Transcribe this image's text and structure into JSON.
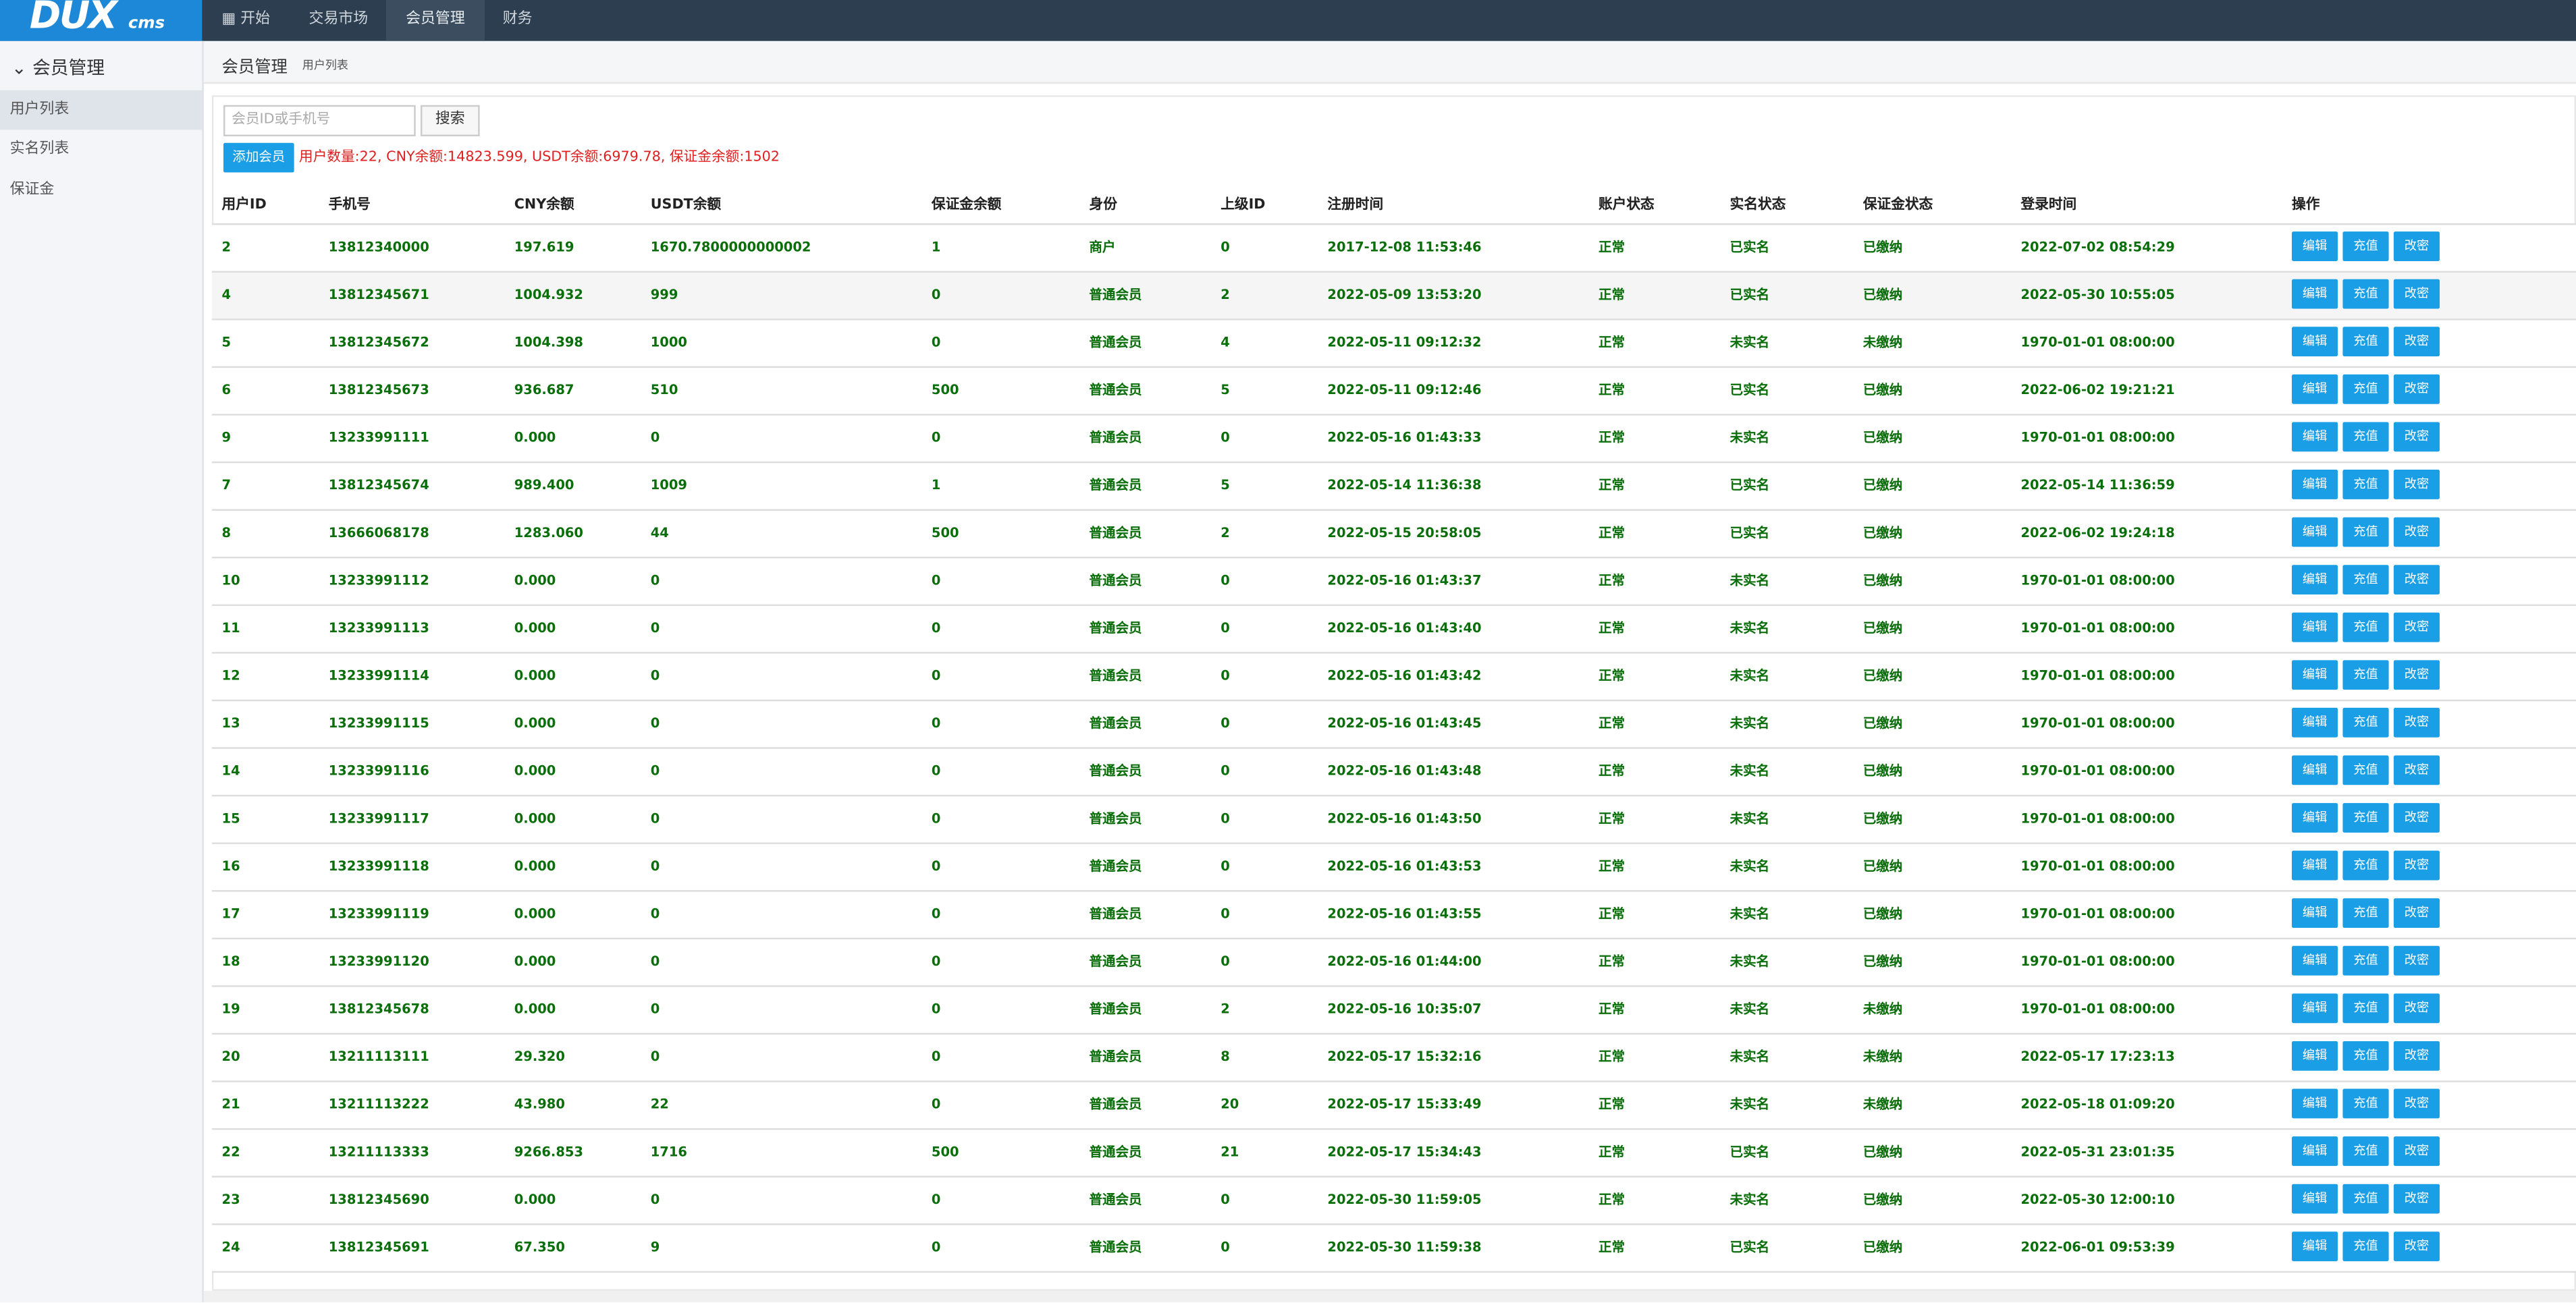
{
  "logo": {
    "main": "DUX",
    "sub": "cms"
  },
  "nav": [
    "开始",
    "交易市场",
    "会员管理",
    "财务"
  ],
  "sidebar": {
    "title": "会员管理",
    "items": [
      "用户列表",
      "实名列表",
      "保证金"
    ]
  },
  "breadcrumb": {
    "title": "会员管理",
    "sub": "用户列表"
  },
  "search": {
    "placeholder": "会员ID或手机号",
    "button": "搜索"
  },
  "add_button": "添加会员",
  "summary": "用户数量:22, CNY余额:14823.599, USDT余额:6979.78, 保证金余额:1502",
  "table": {
    "columns": [
      "用户ID",
      "手机号",
      "CNY余额",
      "USDT余额",
      "保证金余额",
      "身份",
      "上级ID",
      "注册时间",
      "账户状态",
      "实名状态",
      "保证金状态",
      "登录时间",
      "操作"
    ],
    "actions": [
      "编辑",
      "充值",
      "改密"
    ],
    "rows": [
      [
        "2",
        "13812340000",
        "197.619",
        "1670.7800000000002",
        "1",
        "商户",
        "0",
        "2017-12-08 11:53:46",
        "正常",
        "已实名",
        "已缴纳",
        "2022-07-02 08:54:29"
      ],
      [
        "4",
        "13812345671",
        "1004.932",
        "999",
        "0",
        "普通会员",
        "2",
        "2022-05-09 13:53:20",
        "正常",
        "已实名",
        "已缴纳",
        "2022-05-30 10:55:05"
      ],
      [
        "5",
        "13812345672",
        "1004.398",
        "1000",
        "0",
        "普通会员",
        "4",
        "2022-05-11 09:12:32",
        "正常",
        "未实名",
        "未缴纳",
        "1970-01-01 08:00:00"
      ],
      [
        "6",
        "13812345673",
        "936.687",
        "510",
        "500",
        "普通会员",
        "5",
        "2022-05-11 09:12:46",
        "正常",
        "已实名",
        "已缴纳",
        "2022-06-02 19:21:21"
      ],
      [
        "9",
        "13233991111",
        "0.000",
        "0",
        "0",
        "普通会员",
        "0",
        "2022-05-16 01:43:33",
        "正常",
        "未实名",
        "已缴纳",
        "1970-01-01 08:00:00"
      ],
      [
        "7",
        "13812345674",
        "989.400",
        "1009",
        "1",
        "普通会员",
        "5",
        "2022-05-14 11:36:38",
        "正常",
        "已实名",
        "已缴纳",
        "2022-05-14 11:36:59"
      ],
      [
        "8",
        "13666068178",
        "1283.060",
        "44",
        "500",
        "普通会员",
        "2",
        "2022-05-15 20:58:05",
        "正常",
        "已实名",
        "已缴纳",
        "2022-06-02 19:24:18"
      ],
      [
        "10",
        "13233991112",
        "0.000",
        "0",
        "0",
        "普通会员",
        "0",
        "2022-05-16 01:43:37",
        "正常",
        "未实名",
        "已缴纳",
        "1970-01-01 08:00:00"
      ],
      [
        "11",
        "13233991113",
        "0.000",
        "0",
        "0",
        "普通会员",
        "0",
        "2022-05-16 01:43:40",
        "正常",
        "未实名",
        "已缴纳",
        "1970-01-01 08:00:00"
      ],
      [
        "12",
        "13233991114",
        "0.000",
        "0",
        "0",
        "普通会员",
        "0",
        "2022-05-16 01:43:42",
        "正常",
        "未实名",
        "已缴纳",
        "1970-01-01 08:00:00"
      ],
      [
        "13",
        "13233991115",
        "0.000",
        "0",
        "0",
        "普通会员",
        "0",
        "2022-05-16 01:43:45",
        "正常",
        "未实名",
        "已缴纳",
        "1970-01-01 08:00:00"
      ],
      [
        "14",
        "13233991116",
        "0.000",
        "0",
        "0",
        "普通会员",
        "0",
        "2022-05-16 01:43:48",
        "正常",
        "未实名",
        "已缴纳",
        "1970-01-01 08:00:00"
      ],
      [
        "15",
        "13233991117",
        "0.000",
        "0",
        "0",
        "普通会员",
        "0",
        "2022-05-16 01:43:50",
        "正常",
        "未实名",
        "已缴纳",
        "1970-01-01 08:00:00"
      ],
      [
        "16",
        "13233991118",
        "0.000",
        "0",
        "0",
        "普通会员",
        "0",
        "2022-05-16 01:43:53",
        "正常",
        "未实名",
        "已缴纳",
        "1970-01-01 08:00:00"
      ],
      [
        "17",
        "13233991119",
        "0.000",
        "0",
        "0",
        "普通会员",
        "0",
        "2022-05-16 01:43:55",
        "正常",
        "未实名",
        "已缴纳",
        "1970-01-01 08:00:00"
      ],
      [
        "18",
        "13233991120",
        "0.000",
        "0",
        "0",
        "普通会员",
        "0",
        "2022-05-16 01:44:00",
        "正常",
        "未实名",
        "已缴纳",
        "1970-01-01 08:00:00"
      ],
      [
        "19",
        "13812345678",
        "0.000",
        "0",
        "0",
        "普通会员",
        "2",
        "2022-05-16 10:35:07",
        "正常",
        "未实名",
        "未缴纳",
        "1970-01-01 08:00:00"
      ],
      [
        "20",
        "13211113111",
        "29.320",
        "0",
        "0",
        "普通会员",
        "8",
        "2022-05-17 15:32:16",
        "正常",
        "未实名",
        "未缴纳",
        "2022-05-17 17:23:13"
      ],
      [
        "21",
        "13211113222",
        "43.980",
        "22",
        "0",
        "普通会员",
        "20",
        "2022-05-17 15:33:49",
        "正常",
        "未实名",
        "未缴纳",
        "2022-05-18 01:09:20"
      ],
      [
        "22",
        "13211113333",
        "9266.853",
        "1716",
        "500",
        "普通会员",
        "21",
        "2022-05-17 15:34:43",
        "正常",
        "已实名",
        "已缴纳",
        "2022-05-31 23:01:35"
      ],
      [
        "23",
        "13812345690",
        "0.000",
        "0",
        "0",
        "普通会员",
        "0",
        "2022-05-30 11:59:05",
        "正常",
        "未实名",
        "已缴纳",
        "2022-05-30 12:00:10"
      ],
      [
        "24",
        "13812345691",
        "67.350",
        "9",
        "0",
        "普通会员",
        "0",
        "2022-05-30 11:59:38",
        "正常",
        "已实名",
        "已缴纳",
        "2022-06-01 09:53:39"
      ]
    ]
  }
}
